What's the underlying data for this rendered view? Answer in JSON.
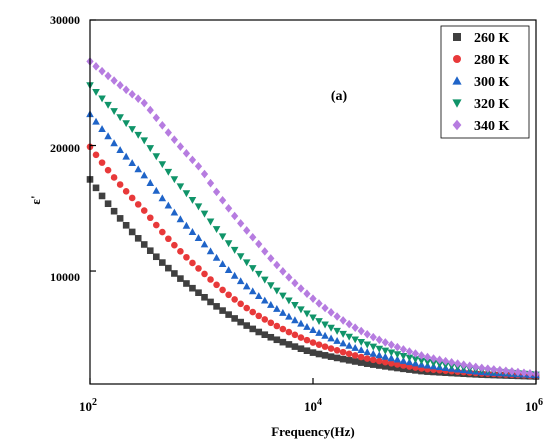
{
  "chart_data": {
    "type": "scatter",
    "annotation": "(a)",
    "xlabel": "Frequency(Hz)",
    "ylabel": "ε'",
    "xscale": "log",
    "xlim": [
      100,
      1000000
    ],
    "ylim": [
      1000,
      30000
    ],
    "yticks": [
      10000,
      20000,
      30000
    ],
    "ytick_labels": [
      "10000",
      "20000",
      "30000"
    ],
    "xticks": [
      100,
      10000,
      1000000
    ],
    "xtick_labels": [
      {
        "base": "10",
        "exp": "2"
      },
      {
        "base": "10",
        "exp": "4"
      },
      {
        "base": "10",
        "exp": "6"
      }
    ],
    "grid": false,
    "legend_position": "top-right",
    "x": [
      100,
      316,
      1000,
      3162,
      10000,
      31623,
      100000,
      316228,
      1000000
    ],
    "series": [
      {
        "name": "260 K",
        "marker": "square",
        "color": "#404040",
        "values": [
          17300,
          12000,
          8100,
          5200,
          3500,
          2600,
          2000,
          1750,
          1600
        ]
      },
      {
        "name": "280 K",
        "marker": "circle",
        "color": "#e8393a",
        "values": [
          19900,
          14700,
          10000,
          6500,
          4300,
          3000,
          2200,
          1850,
          1650
        ]
      },
      {
        "name": "300 K",
        "marker": "triangle-up",
        "color": "#1f64c8",
        "values": [
          22500,
          17500,
          12400,
          8100,
          5300,
          3500,
          2500,
          1950,
          1700
        ]
      },
      {
        "name": "320 K",
        "marker": "triangle-down",
        "color": "#109469",
        "values": [
          24800,
          20300,
          14900,
          9900,
          6300,
          4100,
          2800,
          2100,
          1750
        ]
      },
      {
        "name": "340 K",
        "marker": "diamond",
        "color": "#b67ce0",
        "values": [
          26700,
          23300,
          18100,
          12300,
          7800,
          4900,
          3200,
          2300,
          1800
        ]
      }
    ]
  }
}
